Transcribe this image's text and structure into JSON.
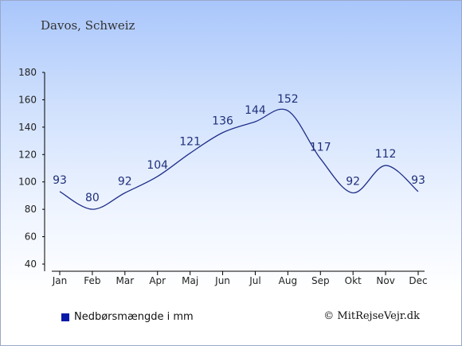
{
  "header": {
    "title": "Davos, Schweiz"
  },
  "legend": {
    "label": "Nedbørsmængde i mm",
    "color": "#0a1aa8"
  },
  "footer": {
    "credit": "© MitRejseVejr.dk"
  },
  "chart_data": {
    "type": "line",
    "categories": [
      "Jan",
      "Feb",
      "Mar",
      "Apr",
      "Maj",
      "Jun",
      "Jul",
      "Aug",
      "Sep",
      "Okt",
      "Nov",
      "Dec"
    ],
    "series": [
      {
        "name": "Nedbørsmængde i mm",
        "values": [
          93,
          80,
          92,
          104,
          121,
          136,
          144,
          152,
          117,
          92,
          112,
          93
        ],
        "color": "#1f2f8a"
      }
    ],
    "title": "Davos, Schweiz",
    "xlabel": "",
    "ylabel": "",
    "ylim": [
      40,
      180
    ],
    "yticks": [
      40,
      60,
      80,
      100,
      120,
      140,
      160,
      180
    ],
    "grid": false,
    "legend_position": "bottom-left"
  }
}
